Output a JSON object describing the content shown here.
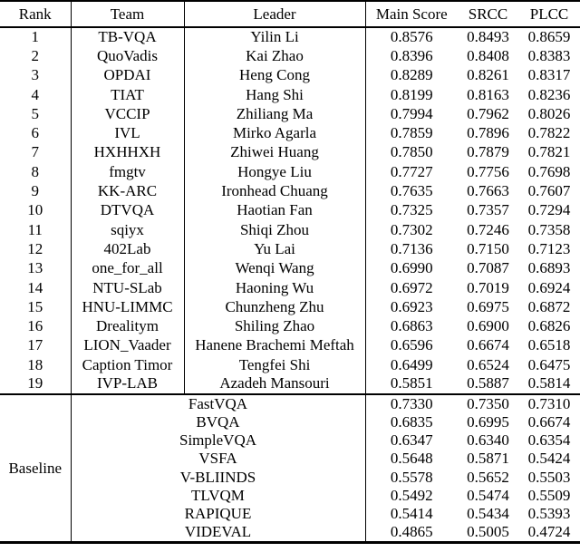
{
  "table": {
    "headers": {
      "rank": "Rank",
      "team": "Team",
      "leader": "Leader",
      "main_score": "Main Score",
      "srcc": "SRCC",
      "plcc": "PLCC"
    },
    "rows": [
      {
        "rank": "1",
        "team": "TB-VQA",
        "leader": "Yilin Li",
        "main_score": "0.8576",
        "srcc": "0.8493",
        "plcc": "0.8659"
      },
      {
        "rank": "2",
        "team": "QuoVadis",
        "leader": "Kai Zhao",
        "main_score": "0.8396",
        "srcc": "0.8408",
        "plcc": "0.8383"
      },
      {
        "rank": "3",
        "team": "OPDAI",
        "leader": "Heng Cong",
        "main_score": "0.8289",
        "srcc": "0.8261",
        "plcc": "0.8317"
      },
      {
        "rank": "4",
        "team": "TIAT",
        "leader": "Hang Shi",
        "main_score": "0.8199",
        "srcc": "0.8163",
        "plcc": "0.8236"
      },
      {
        "rank": "5",
        "team": "VCCIP",
        "leader": "Zhiliang Ma",
        "main_score": "0.7994",
        "srcc": "0.7962",
        "plcc": "0.8026"
      },
      {
        "rank": "6",
        "team": "IVL",
        "leader": "Mirko Agarla",
        "main_score": "0.7859",
        "srcc": "0.7896",
        "plcc": "0.7822"
      },
      {
        "rank": "7",
        "team": "HXHHXH",
        "leader": "Zhiwei Huang",
        "main_score": "0.7850",
        "srcc": "0.7879",
        "plcc": "0.7821"
      },
      {
        "rank": "8",
        "team": "fmgtv",
        "leader": "Hongye Liu",
        "main_score": "0.7727",
        "srcc": "0.7756",
        "plcc": "0.7698"
      },
      {
        "rank": "9",
        "team": "KK-ARC",
        "leader": "Ironhead Chuang",
        "main_score": "0.7635",
        "srcc": "0.7663",
        "plcc": "0.7607"
      },
      {
        "rank": "10",
        "team": "DTVQA",
        "leader": "Haotian Fan",
        "main_score": "0.7325",
        "srcc": "0.7357",
        "plcc": "0.7294"
      },
      {
        "rank": "11",
        "team": "sqiyx",
        "leader": "Shiqi Zhou",
        "main_score": "0.7302",
        "srcc": "0.7246",
        "plcc": "0.7358"
      },
      {
        "rank": "12",
        "team": "402Lab",
        "leader": "Yu Lai",
        "main_score": "0.7136",
        "srcc": "0.7150",
        "plcc": "0.7123"
      },
      {
        "rank": "13",
        "team": "one_for_all",
        "leader": "Wenqi Wang",
        "main_score": "0.6990",
        "srcc": "0.7087",
        "plcc": "0.6893"
      },
      {
        "rank": "14",
        "team": "NTU-SLab",
        "leader": "Haoning Wu",
        "main_score": "0.6972",
        "srcc": "0.7019",
        "plcc": "0.6924"
      },
      {
        "rank": "15",
        "team": "HNU-LIMMC",
        "leader": "Chunzheng Zhu",
        "main_score": "0.6923",
        "srcc": "0.6975",
        "plcc": "0.6872"
      },
      {
        "rank": "16",
        "team": "Drealitym",
        "leader": "Shiling Zhao",
        "main_score": "0.6863",
        "srcc": "0.6900",
        "plcc": "0.6826"
      },
      {
        "rank": "17",
        "team": "LION_Vaader",
        "leader": "Hanene Brachemi Meftah",
        "main_score": "0.6596",
        "srcc": "0.6674",
        "plcc": "0.6518"
      },
      {
        "rank": "18",
        "team": "Caption Timor",
        "leader": "Tengfei Shi",
        "main_score": "0.6499",
        "srcc": "0.6524",
        "plcc": "0.6475"
      },
      {
        "rank": "19",
        "team": "IVP-LAB",
        "leader": "Azadeh Mansouri",
        "main_score": "0.5851",
        "srcc": "0.5887",
        "plcc": "0.5814"
      }
    ],
    "baseline": {
      "label": "Baseline",
      "rows": [
        {
          "method": "FastVQA",
          "main_score": "0.7330",
          "srcc": "0.7350",
          "plcc": "0.7310"
        },
        {
          "method": "BVQA",
          "main_score": "0.6835",
          "srcc": "0.6995",
          "plcc": "0.6674"
        },
        {
          "method": "SimpleVQA",
          "main_score": "0.6347",
          "srcc": "0.6340",
          "plcc": "0.6354"
        },
        {
          "method": "VSFA",
          "main_score": "0.5648",
          "srcc": "0.5871",
          "plcc": "0.5424"
        },
        {
          "method": "V-BLIINDS",
          "main_score": "0.5578",
          "srcc": "0.5652",
          "plcc": "0.5503"
        },
        {
          "method": "TLVQM",
          "main_score": "0.5492",
          "srcc": "0.5474",
          "plcc": "0.5509"
        },
        {
          "method": "RAPIQUE",
          "main_score": "0.5414",
          "srcc": "0.5434",
          "plcc": "0.5393"
        },
        {
          "method": "VIDEVAL",
          "main_score": "0.4865",
          "srcc": "0.5005",
          "plcc": "0.4724"
        }
      ]
    }
  }
}
